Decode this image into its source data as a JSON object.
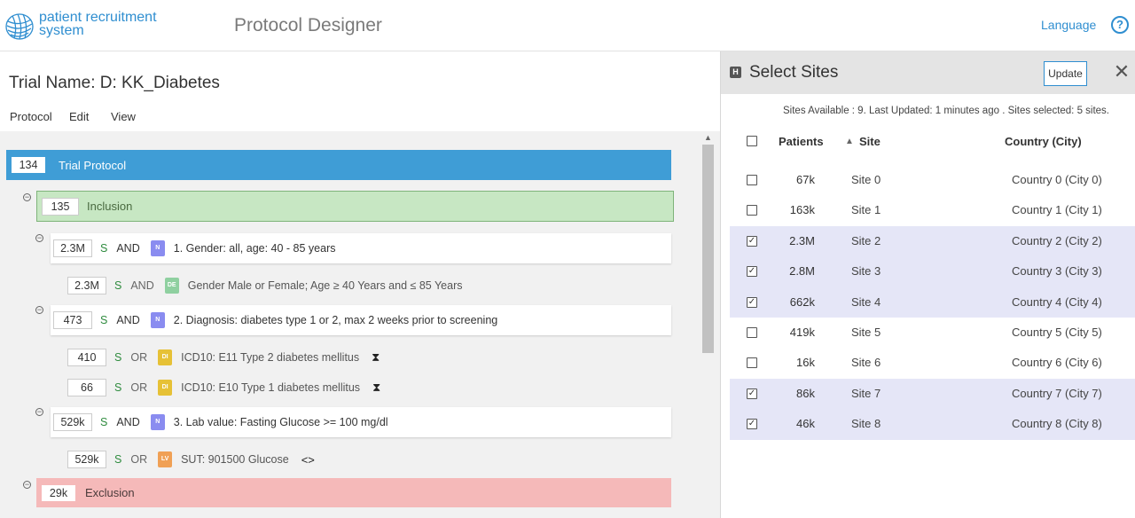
{
  "header": {
    "logo_line1": "patient recruitment",
    "logo_line2": "system",
    "app_title": "Protocol Designer",
    "language_label": "Language",
    "help_label": "?"
  },
  "trial": {
    "name": "Trial Name: D: KK_Diabetes"
  },
  "menu": [
    "Protocol",
    "Edit",
    "View"
  ],
  "tree": {
    "root": {
      "count": "134",
      "label": "Trial Protocol"
    },
    "inclusion": {
      "count": "135",
      "label": "Inclusion"
    },
    "criteria": [
      {
        "count": "2.3M",
        "s": "S",
        "op": "AND",
        "tag": "N",
        "text": "1. Gender: all, age: 40 - 85 years"
      },
      {
        "count": "2.3M",
        "s": "S",
        "op": "AND",
        "tag": "DE",
        "text": "Gender Male or Female; Age ≥ 40 Years and ≤ 85 Years"
      },
      {
        "count": "473",
        "s": "S",
        "op": "AND",
        "tag": "N",
        "text": "2. Diagnosis: diabetes type 1 or 2, max 2 weeks prior to screening"
      },
      {
        "count": "410",
        "s": "S",
        "op": "OR",
        "tag": "DI",
        "text": "ICD10: E11 Type 2 diabetes mellitus",
        "aux": "⧗"
      },
      {
        "count": "66",
        "s": "S",
        "op": "OR",
        "tag": "DI",
        "text": "ICD10: E10 Type 1 diabetes mellitus",
        "aux": "⧗"
      },
      {
        "count": "529k",
        "s": "S",
        "op": "AND",
        "tag": "N",
        "text": "3. Lab value: Fasting Glucose >= 100 mg/dl"
      },
      {
        "count": "529k",
        "s": "S",
        "op": "OR",
        "tag": "LV",
        "text": "SUT: 901500 Glucose",
        "aux": "<>"
      }
    ],
    "exclusion": {
      "count": "29k",
      "label": "Exclusion"
    },
    "collapse_glyph": "−"
  },
  "panel": {
    "icon_label": "H",
    "title": "Select Sites",
    "update_label": "Update",
    "close_label": "✕",
    "status": "Sites Available : 9. Last Updated: 1 minutes ago . Sites selected: 5 sites.",
    "columns": {
      "patients": "Patients",
      "site": "Site",
      "country": "Country (City)"
    },
    "sort_arrow": "▲",
    "rows": [
      {
        "checked": false,
        "patients": "67k",
        "site": "Site 0",
        "country": "Country 0 (City 0)"
      },
      {
        "checked": false,
        "patients": "163k",
        "site": "Site 1",
        "country": "Country 1 (City 1)"
      },
      {
        "checked": true,
        "patients": "2.3M",
        "site": "Site 2",
        "country": "Country 2 (City 2)"
      },
      {
        "checked": true,
        "patients": "2.8M",
        "site": "Site 3",
        "country": "Country 3 (City 3)"
      },
      {
        "checked": true,
        "patients": "662k",
        "site": "Site 4",
        "country": "Country 4 (City 4)"
      },
      {
        "checked": false,
        "patients": "419k",
        "site": "Site 5",
        "country": "Country 5 (City 5)"
      },
      {
        "checked": false,
        "patients": "16k",
        "site": "Site 6",
        "country": "Country 6 (City 6)"
      },
      {
        "checked": true,
        "patients": "86k",
        "site": "Site 7",
        "country": "Country 7 (City 7)"
      },
      {
        "checked": true,
        "patients": "46k",
        "site": "Site 8",
        "country": "Country 8 (City 8)"
      }
    ],
    "check_glyph": "✓"
  },
  "colors": {
    "brand_blue": "#2f8ed0",
    "root_bg": "#3f9dd6",
    "inclusion_bg": "#c7e7c3",
    "exclusion_bg": "#f5b9b9",
    "selected_row": "#e5e6f7"
  }
}
